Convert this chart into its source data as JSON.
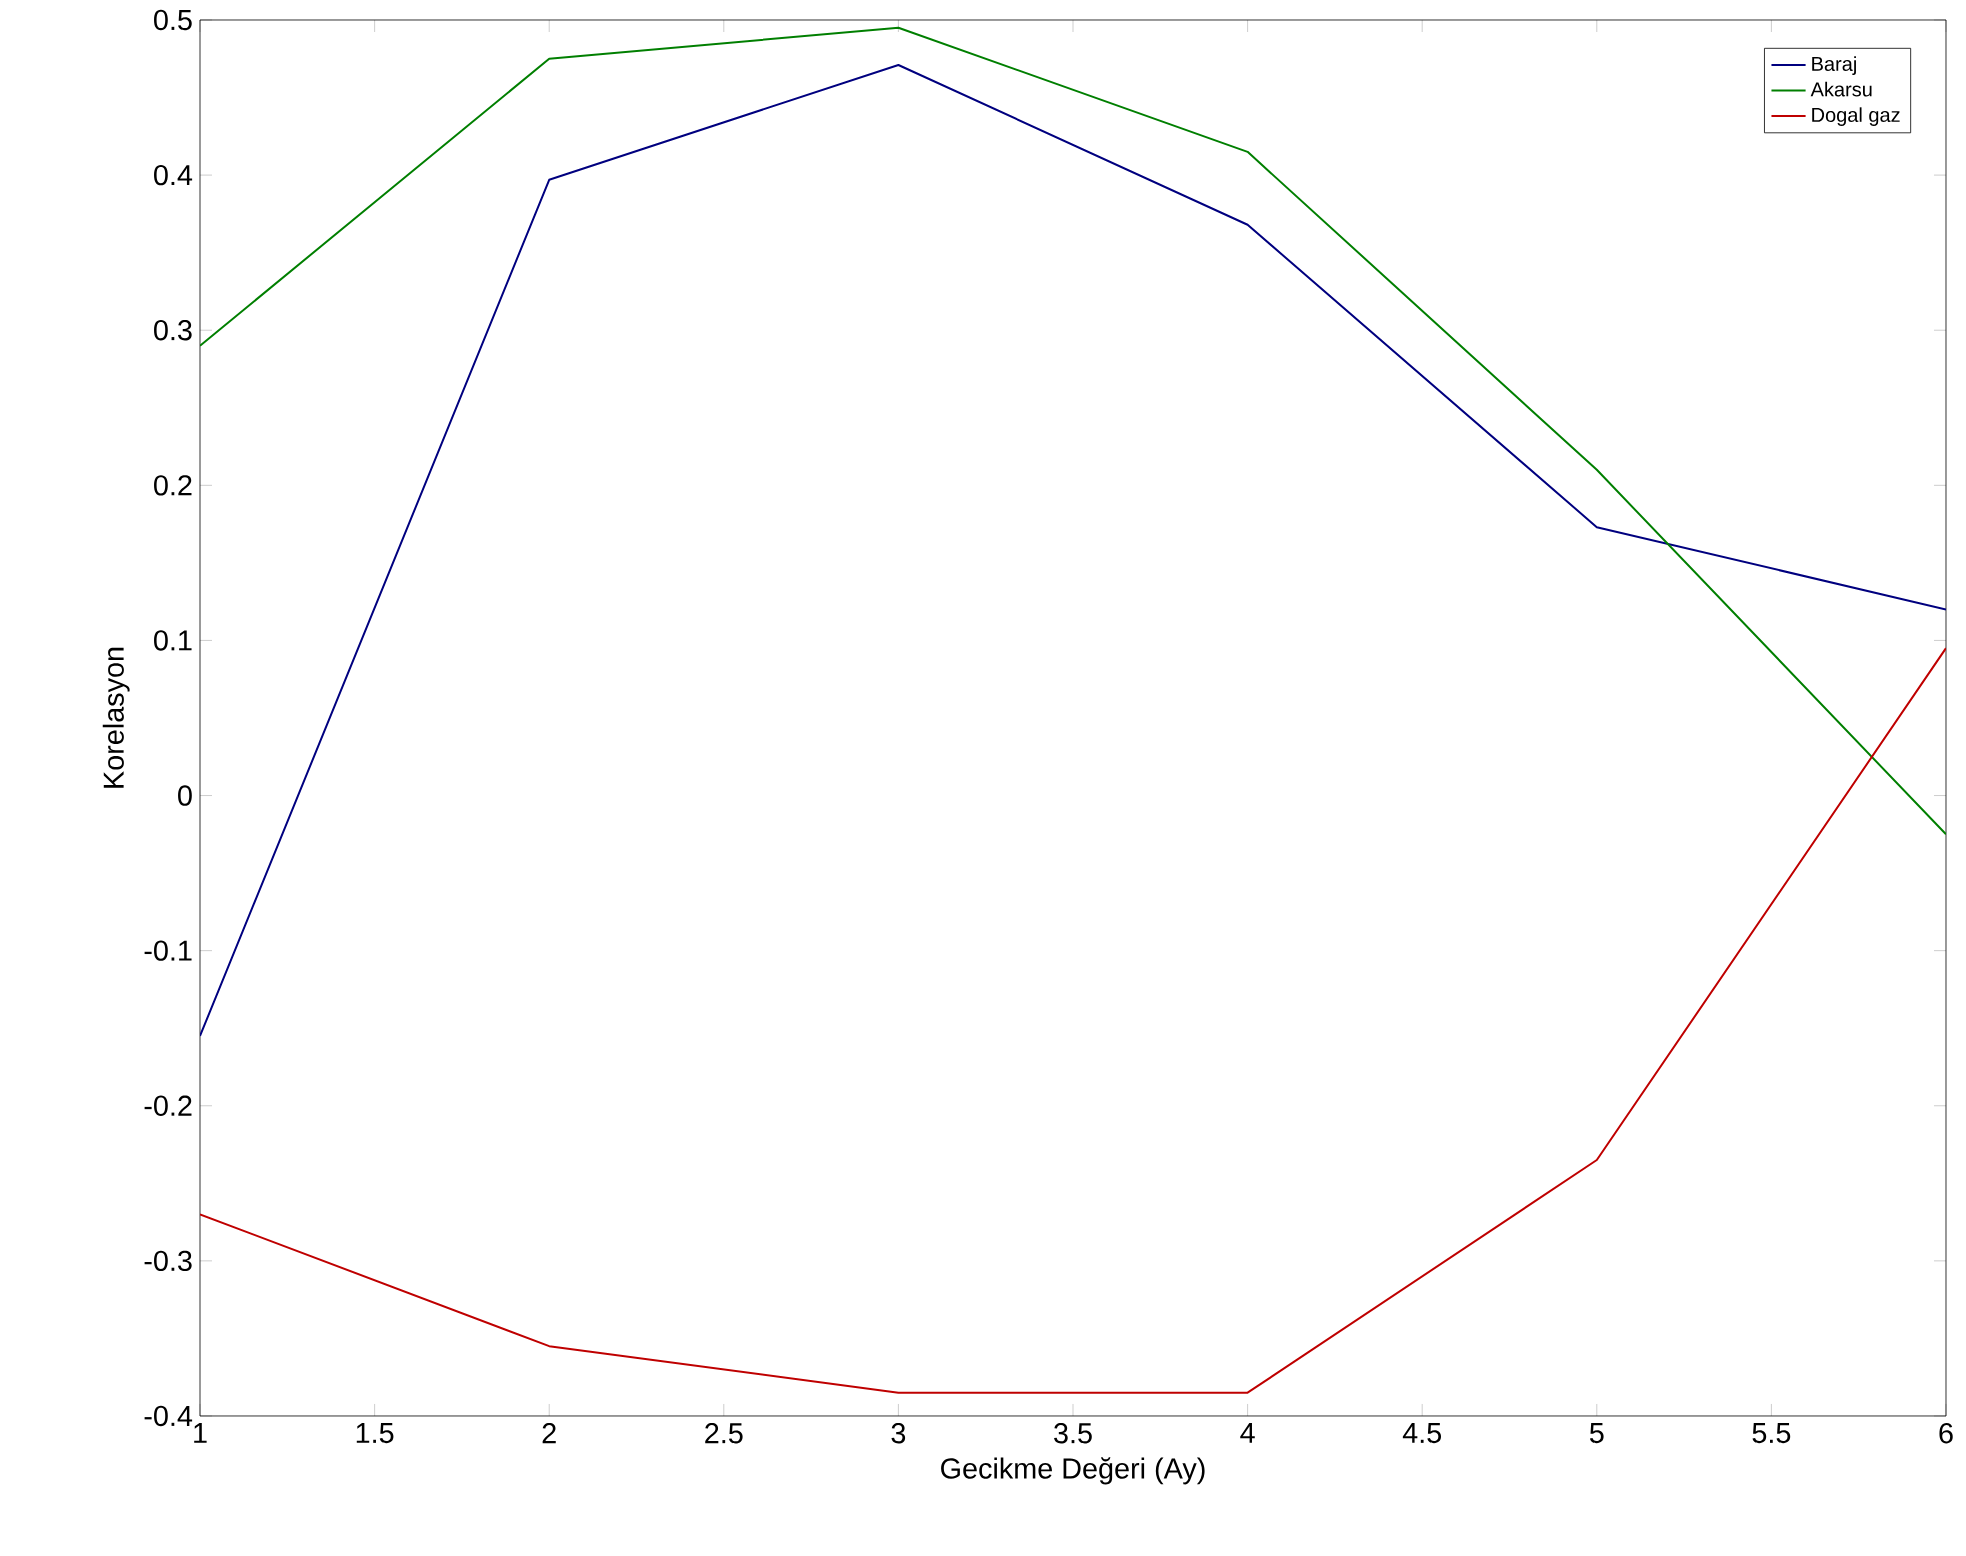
{
  "chart_data": {
    "type": "line",
    "xlabel": "Gecikme Değeri (Ay)",
    "ylabel": "Korelasyon",
    "x": [
      1,
      2,
      3,
      4,
      5,
      6
    ],
    "series": [
      {
        "name": "Baraj",
        "color": "#00007f",
        "values": [
          -0.155,
          0.397,
          0.471,
          0.368,
          0.173,
          0.12
        ]
      },
      {
        "name": "Akarsu",
        "color": "#007f00",
        "values": [
          0.29,
          0.475,
          0.495,
          0.415,
          0.21,
          -0.025
        ]
      },
      {
        "name": "Dogal gaz",
        "color": "#bf0000",
        "values": [
          -0.27,
          -0.355,
          -0.385,
          -0.385,
          -0.235,
          0.095
        ]
      }
    ],
    "xlim": [
      1,
      6
    ],
    "ylim": [
      -0.4,
      0.5
    ],
    "xticks": [
      1,
      1.5,
      2,
      2.5,
      3,
      3.5,
      4,
      4.5,
      5,
      5.5,
      6
    ],
    "yticks": [
      -0.4,
      -0.3,
      -0.2,
      -0.1,
      0,
      0.1,
      0.2,
      0.3,
      0.4,
      0.5
    ],
    "legend": "top right",
    "grid": false,
    "marker": "none",
    "line_style": "solid"
  }
}
